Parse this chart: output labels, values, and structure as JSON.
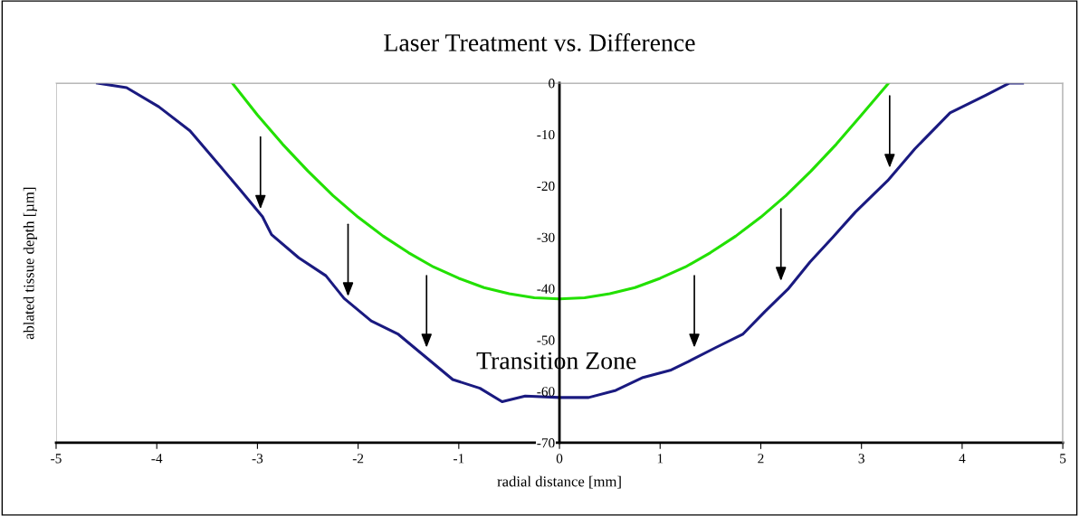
{
  "chart_data": {
    "type": "line",
    "title": "Laser Treatment vs. Difference",
    "xlabel": "radial distance [mm]",
    "ylabel": "ablated tissue depth [µm]",
    "xlim": [
      -5,
      5
    ],
    "ylim": [
      -70,
      0
    ],
    "xticks": [
      -5,
      -4,
      -3,
      -2,
      -1,
      0,
      1,
      2,
      3,
      4,
      5
    ],
    "yticks": [
      -70,
      -60,
      -50,
      -40,
      -30,
      -20,
      -10,
      0
    ],
    "grid": false,
    "legend": false,
    "marker": "none",
    "line_style": "solid",
    "annotations": [
      "Transition Zone"
    ],
    "series": [
      {
        "color": "#1a1a80",
        "x": [
          -4.59,
          -4.3,
          -3.98,
          -3.67,
          -3.4,
          -3.17,
          -2.95,
          -2.86,
          -2.59,
          -2.32,
          -2.14,
          -1.87,
          -1.6,
          -1.33,
          -1.06,
          -0.79,
          -0.57,
          -0.34,
          0,
          0.29,
          0.56,
          0.83,
          1.1,
          1.28,
          1.55,
          1.82,
          2.04,
          2.27,
          2.49,
          2.72,
          2.94,
          3.26,
          3.53,
          3.88,
          4.24,
          4.47,
          4.6
        ],
        "values": [
          0,
          -0.9,
          -4.6,
          -9.3,
          -15.5,
          -20.8,
          -26,
          -29.5,
          -34,
          -37.5,
          -41.9,
          -46.3,
          -48.9,
          -53.3,
          -57.7,
          -59.4,
          -62,
          -60.9,
          -61.2,
          -61.2,
          -59.8,
          -57.3,
          -55.9,
          -54.2,
          -51.5,
          -48.9,
          -44.5,
          -40.1,
          -34.8,
          -29.9,
          -25.1,
          -19,
          -12.8,
          -5.8,
          -2.3,
          0,
          0
        ]
      },
      {
        "color": "#22e000",
        "x": [
          -3.25,
          -3,
          -2.75,
          -2.5,
          -2.25,
          -2,
          -1.75,
          -1.5,
          -1.25,
          -1,
          -0.75,
          -0.5,
          -0.25,
          0,
          0.25,
          0.5,
          0.75,
          1,
          1.25,
          1.5,
          1.75,
          2,
          2.25,
          2.5,
          2.75,
          3,
          3.27
        ],
        "values": [
          0,
          -6.2,
          -11.9,
          -17.1,
          -21.9,
          -26.1,
          -29.8,
          -33,
          -35.8,
          -38,
          -39.8,
          -41,
          -41.8,
          -42,
          -41.8,
          -41,
          -39.8,
          -38,
          -35.8,
          -33,
          -29.8,
          -26.1,
          -21.9,
          -17.1,
          -11.9,
          -6.2,
          0
        ]
      }
    ]
  }
}
